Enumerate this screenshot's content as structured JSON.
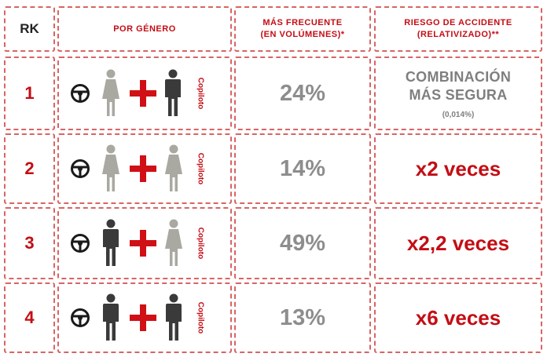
{
  "header": {
    "rk": "RK",
    "gender": "POR GÉNERO",
    "frequent_line1": "MÁS FRECUENTE",
    "frequent_line2": "(EN VOLÚMENES)*",
    "risk_line1": "RIESGO DE ACCIDENTE",
    "risk_line2": "(RELATIVIZADO)**"
  },
  "copilot_label": "Copiloto",
  "colors": {
    "accent_red": "#c40d14",
    "border_red": "#d86464",
    "female_gray": "#a9a8a1",
    "male_dark": "#3a3a3a",
    "percent_gray": "#8d8d8d"
  },
  "rows": [
    {
      "rank": "1",
      "driver": "female",
      "copilot": "male",
      "share": "24%",
      "risk_line1": "COMBINACIÓN",
      "risk_line2": "MÁS SEGURA",
      "risk_note": "(0,014%)"
    },
    {
      "rank": "2",
      "driver": "female",
      "copilot": "female",
      "share": "14%",
      "risk": "x2 veces"
    },
    {
      "rank": "3",
      "driver": "male",
      "copilot": "female",
      "share": "49%",
      "risk": "x2,2 veces"
    },
    {
      "rank": "4",
      "driver": "male",
      "copilot": "male",
      "share": "13%",
      "risk": "x6 veces"
    }
  ]
}
